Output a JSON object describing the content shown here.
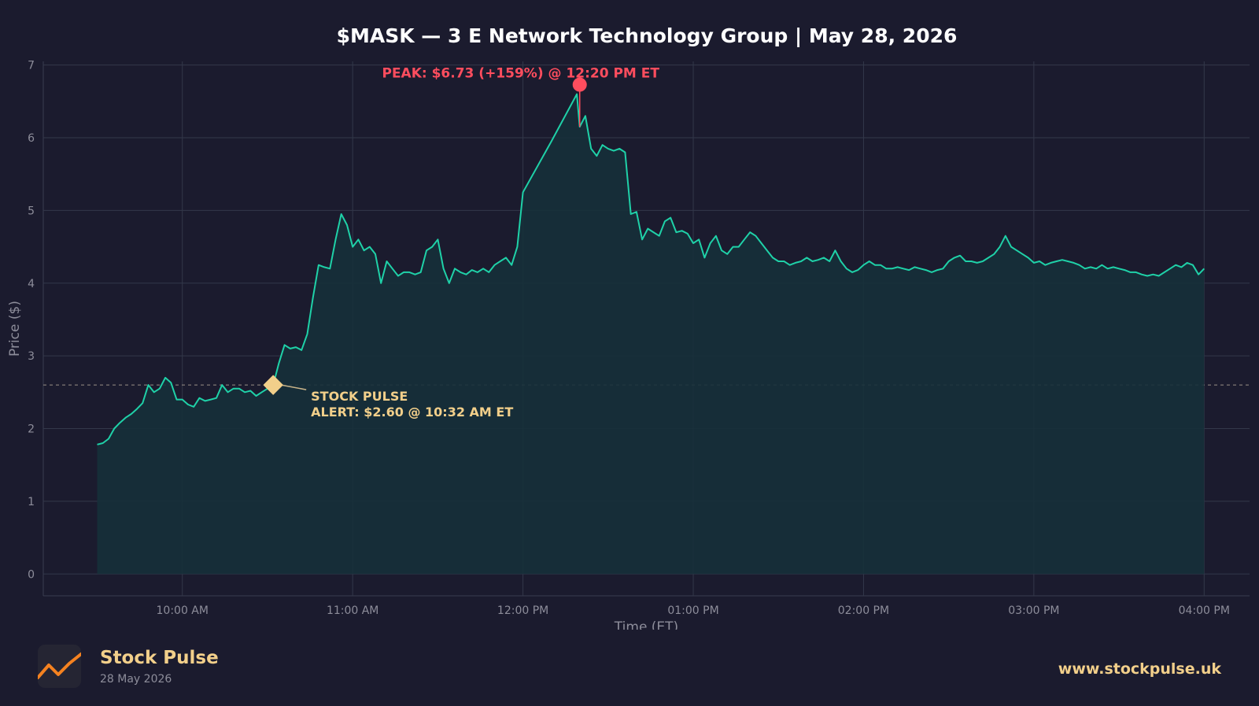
{
  "chart_data": {
    "type": "line",
    "title": "$MASK — 3 E Network Technology Group  |  May 28, 2026",
    "xlabel": "Time (ET)",
    "ylabel": "Price ($)",
    "ylim": [
      -0.3,
      7.05
    ],
    "xlim": [
      "09:11",
      "16:16"
    ],
    "y_ticks": [
      0,
      1,
      2,
      3,
      4,
      5,
      6,
      7
    ],
    "x_ticks": [
      {
        "time": "10:00",
        "label": "10:00 AM"
      },
      {
        "time": "11:00",
        "label": "11:00 AM"
      },
      {
        "time": "12:00",
        "label": "12:00 PM"
      },
      {
        "time": "13:00",
        "label": "01:00 PM"
      },
      {
        "time": "14:00",
        "label": "02:00 PM"
      },
      {
        "time": "15:00",
        "label": "03:00 PM"
      },
      {
        "time": "16:00",
        "label": "04:00 PM"
      }
    ],
    "grid": true,
    "series": [
      {
        "color": "#1fd1a8",
        "points": [
          [
            "09:30",
            1.78
          ],
          [
            "09:32",
            1.8
          ],
          [
            "09:34",
            1.86
          ],
          [
            "09:36",
            2.0
          ],
          [
            "09:38",
            2.08
          ],
          [
            "09:40",
            2.15
          ],
          [
            "09:42",
            2.2
          ],
          [
            "09:44",
            2.27
          ],
          [
            "09:46",
            2.35
          ],
          [
            "09:48",
            2.6
          ],
          [
            "09:50",
            2.5
          ],
          [
            "09:52",
            2.55
          ],
          [
            "09:54",
            2.7
          ],
          [
            "09:56",
            2.63
          ],
          [
            "09:58",
            2.4
          ],
          [
            "10:00",
            2.4
          ],
          [
            "10:02",
            2.33
          ],
          [
            "10:04",
            2.3
          ],
          [
            "10:06",
            2.42
          ],
          [
            "10:08",
            2.38
          ],
          [
            "10:10",
            2.4
          ],
          [
            "10:12",
            2.42
          ],
          [
            "10:14",
            2.6
          ],
          [
            "10:16",
            2.5
          ],
          [
            "10:18",
            2.55
          ],
          [
            "10:20",
            2.55
          ],
          [
            "10:22",
            2.5
          ],
          [
            "10:24",
            2.52
          ],
          [
            "10:26",
            2.45
          ],
          [
            "10:28",
            2.5
          ],
          [
            "10:30",
            2.55
          ],
          [
            "10:32",
            2.6
          ],
          [
            "10:34",
            2.9
          ],
          [
            "10:36",
            3.15
          ],
          [
            "10:38",
            3.1
          ],
          [
            "10:40",
            3.12
          ],
          [
            "10:42",
            3.08
          ],
          [
            "10:44",
            3.3
          ],
          [
            "10:46",
            3.8
          ],
          [
            "10:48",
            4.25
          ],
          [
            "10:50",
            4.22
          ],
          [
            "10:52",
            4.2
          ],
          [
            "10:54",
            4.6
          ],
          [
            "10:56",
            4.95
          ],
          [
            "10:58",
            4.8
          ],
          [
            "11:00",
            4.5
          ],
          [
            "11:02",
            4.6
          ],
          [
            "11:04",
            4.45
          ],
          [
            "11:06",
            4.5
          ],
          [
            "11:08",
            4.4
          ],
          [
            "11:10",
            4.0
          ],
          [
            "11:12",
            4.3
          ],
          [
            "11:14",
            4.2
          ],
          [
            "11:16",
            4.1
          ],
          [
            "11:18",
            4.15
          ],
          [
            "11:20",
            4.15
          ],
          [
            "11:22",
            4.12
          ],
          [
            "11:24",
            4.15
          ],
          [
            "11:26",
            4.45
          ],
          [
            "11:28",
            4.5
          ],
          [
            "11:30",
            4.6
          ],
          [
            "11:32",
            4.2
          ],
          [
            "11:34",
            4.0
          ],
          [
            "11:36",
            4.2
          ],
          [
            "11:38",
            4.15
          ],
          [
            "11:40",
            4.12
          ],
          [
            "11:42",
            4.18
          ],
          [
            "11:44",
            4.15
          ],
          [
            "11:46",
            4.2
          ],
          [
            "11:48",
            4.15
          ],
          [
            "11:50",
            4.25
          ],
          [
            "11:52",
            4.3
          ],
          [
            "11:54",
            4.35
          ],
          [
            "11:56",
            4.25
          ],
          [
            "11:58",
            4.5
          ],
          [
            "12:00",
            5.25
          ],
          [
            "12:10",
            5.95
          ],
          [
            "12:19",
            6.6
          ],
          [
            "12:20",
            6.15
          ],
          [
            "12:22",
            6.3
          ],
          [
            "12:24",
            5.85
          ],
          [
            "12:26",
            5.75
          ],
          [
            "12:28",
            5.9
          ],
          [
            "12:30",
            5.85
          ],
          [
            "12:32",
            5.82
          ],
          [
            "12:34",
            5.85
          ],
          [
            "12:36",
            5.8
          ],
          [
            "12:38",
            4.95
          ],
          [
            "12:40",
            4.98
          ],
          [
            "12:42",
            4.6
          ],
          [
            "12:44",
            4.75
          ],
          [
            "12:46",
            4.7
          ],
          [
            "12:48",
            4.65
          ],
          [
            "12:50",
            4.85
          ],
          [
            "12:52",
            4.9
          ],
          [
            "12:54",
            4.7
          ],
          [
            "12:56",
            4.72
          ],
          [
            "12:58",
            4.68
          ],
          [
            "13:00",
            4.55
          ],
          [
            "13:02",
            4.6
          ],
          [
            "13:04",
            4.35
          ],
          [
            "13:06",
            4.55
          ],
          [
            "13:08",
            4.65
          ],
          [
            "13:10",
            4.45
          ],
          [
            "13:12",
            4.4
          ],
          [
            "13:14",
            4.5
          ],
          [
            "13:16",
            4.5
          ],
          [
            "13:18",
            4.6
          ],
          [
            "13:20",
            4.7
          ],
          [
            "13:22",
            4.65
          ],
          [
            "13:24",
            4.55
          ],
          [
            "13:26",
            4.45
          ],
          [
            "13:28",
            4.35
          ],
          [
            "13:30",
            4.3
          ],
          [
            "13:32",
            4.3
          ],
          [
            "13:34",
            4.25
          ],
          [
            "13:36",
            4.28
          ],
          [
            "13:38",
            4.3
          ],
          [
            "13:40",
            4.35
          ],
          [
            "13:42",
            4.3
          ],
          [
            "13:44",
            4.32
          ],
          [
            "13:46",
            4.35
          ],
          [
            "13:48",
            4.3
          ],
          [
            "13:50",
            4.45
          ],
          [
            "13:52",
            4.3
          ],
          [
            "13:54",
            4.2
          ],
          [
            "13:56",
            4.15
          ],
          [
            "13:58",
            4.18
          ],
          [
            "14:00",
            4.25
          ],
          [
            "14:02",
            4.3
          ],
          [
            "14:04",
            4.25
          ],
          [
            "14:06",
            4.25
          ],
          [
            "14:08",
            4.2
          ],
          [
            "14:10",
            4.2
          ],
          [
            "14:12",
            4.22
          ],
          [
            "14:14",
            4.2
          ],
          [
            "14:16",
            4.18
          ],
          [
            "14:18",
            4.22
          ],
          [
            "14:20",
            4.2
          ],
          [
            "14:22",
            4.18
          ],
          [
            "14:24",
            4.15
          ],
          [
            "14:26",
            4.18
          ],
          [
            "14:28",
            4.2
          ],
          [
            "14:30",
            4.3
          ],
          [
            "14:32",
            4.35
          ],
          [
            "14:34",
            4.38
          ],
          [
            "14:36",
            4.3
          ],
          [
            "14:38",
            4.3
          ],
          [
            "14:40",
            4.28
          ],
          [
            "14:42",
            4.3
          ],
          [
            "14:44",
            4.35
          ],
          [
            "14:46",
            4.4
          ],
          [
            "14:48",
            4.5
          ],
          [
            "14:50",
            4.65
          ],
          [
            "14:52",
            4.5
          ],
          [
            "14:54",
            4.45
          ],
          [
            "14:56",
            4.4
          ],
          [
            "14:58",
            4.35
          ],
          [
            "15:00",
            4.28
          ],
          [
            "15:02",
            4.3
          ],
          [
            "15:04",
            4.25
          ],
          [
            "15:06",
            4.28
          ],
          [
            "15:08",
            4.3
          ],
          [
            "15:10",
            4.32
          ],
          [
            "15:12",
            4.3
          ],
          [
            "15:14",
            4.28
          ],
          [
            "15:16",
            4.25
          ],
          [
            "15:18",
            4.2
          ],
          [
            "15:20",
            4.22
          ],
          [
            "15:22",
            4.2
          ],
          [
            "15:24",
            4.25
          ],
          [
            "15:26",
            4.2
          ],
          [
            "15:28",
            4.22
          ],
          [
            "15:30",
            4.2
          ],
          [
            "15:32",
            4.18
          ],
          [
            "15:34",
            4.15
          ],
          [
            "15:36",
            4.15
          ],
          [
            "15:38",
            4.12
          ],
          [
            "15:40",
            4.1
          ],
          [
            "15:42",
            4.12
          ],
          [
            "15:44",
            4.1
          ],
          [
            "15:46",
            4.15
          ],
          [
            "15:48",
            4.2
          ],
          [
            "15:50",
            4.25
          ],
          [
            "15:52",
            4.22
          ],
          [
            "15:54",
            4.28
          ],
          [
            "15:56",
            4.25
          ],
          [
            "15:58",
            4.12
          ],
          [
            "16:00",
            4.2
          ]
        ]
      }
    ],
    "annotations": [
      {
        "kind": "peak",
        "time": "12:20",
        "price": 6.73,
        "text": "PEAK: $6.73 (+159%) @ 12:20 PM ET",
        "color": "#ff4d5e"
      },
      {
        "kind": "alert",
        "time": "10:32",
        "price": 2.6,
        "text_line1": "STOCK PULSE",
        "text_line2": "ALERT: $2.60 @ 10:32 AM ET",
        "color": "#f2cf8a"
      }
    ],
    "reference_line": {
      "price": 2.6,
      "style": "dashed"
    },
    "colors": {
      "line": "#1fd1a8",
      "fill": "#16303a",
      "grid": "#33384a",
      "background": "#1b1b2e"
    }
  },
  "footer": {
    "brand_name": "Stock Pulse",
    "brand_date": "28 May 2026",
    "website": "www.stockpulse.uk"
  }
}
